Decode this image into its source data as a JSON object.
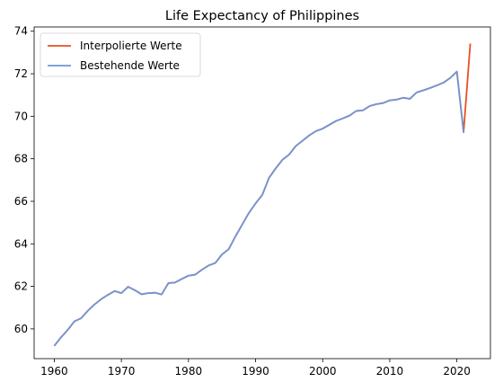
{
  "chart_data": {
    "type": "line",
    "title": "Life Expectancy of Philippines",
    "xlabel": "",
    "ylabel": "",
    "xlim": [
      1957,
      2025
    ],
    "ylim": [
      58.6,
      74.2
    ],
    "xticks": [
      1960,
      1970,
      1980,
      1990,
      2000,
      2010,
      2020,
      2030
    ],
    "yticks": [
      60,
      62,
      64,
      66,
      68,
      70,
      72,
      74
    ],
    "grid": false,
    "legend_position": "top-left",
    "series": [
      {
        "name": "Interpolierte Werte",
        "color": "#e8501e",
        "x": [
          1960,
          1961,
          1962,
          1963,
          1964,
          1965,
          1966,
          1967,
          1968,
          1969,
          1970,
          1971,
          1972,
          1973,
          1974,
          1975,
          1976,
          1977,
          1978,
          1979,
          1980,
          1981,
          1982,
          1983,
          1984,
          1985,
          1986,
          1987,
          1988,
          1989,
          1990,
          1991,
          1992,
          1993,
          1994,
          1995,
          1996,
          1997,
          1998,
          1999,
          2000,
          2001,
          2002,
          2003,
          2004,
          2005,
          2006,
          2007,
          2008,
          2009,
          2010,
          2011,
          2012,
          2013,
          2014,
          2015,
          2016,
          2017,
          2018,
          2019,
          2020,
          2021,
          2022
        ],
        "y": [
          59.2,
          59.6,
          59.95,
          60.35,
          60.5,
          60.85,
          61.15,
          61.4,
          61.6,
          61.78,
          61.68,
          61.98,
          61.82,
          61.63,
          61.68,
          61.7,
          61.62,
          62.15,
          62.18,
          62.35,
          62.5,
          62.55,
          62.78,
          62.98,
          63.1,
          63.5,
          63.75,
          64.35,
          64.9,
          65.45,
          65.9,
          66.3,
          67.1,
          67.55,
          67.95,
          68.2,
          68.6,
          68.85,
          69.1,
          69.3,
          69.42,
          69.6,
          69.78,
          69.9,
          70.03,
          70.25,
          70.28,
          70.48,
          70.57,
          70.62,
          70.75,
          70.78,
          70.87,
          70.82,
          71.12,
          71.22,
          71.33,
          71.45,
          71.58,
          71.8,
          72.1,
          69.25,
          73.42
        ]
      },
      {
        "name": "Bestehende Werte",
        "color": "#7096d6",
        "x": [
          1960,
          1961,
          1962,
          1963,
          1964,
          1965,
          1966,
          1967,
          1968,
          1969,
          1970,
          1971,
          1972,
          1973,
          1974,
          1975,
          1976,
          1977,
          1978,
          1979,
          1980,
          1981,
          1982,
          1983,
          1984,
          1985,
          1986,
          1987,
          1988,
          1989,
          1990,
          1991,
          1992,
          1993,
          1994,
          1995,
          1996,
          1997,
          1998,
          1999,
          2000,
          2001,
          2002,
          2003,
          2004,
          2005,
          2006,
          2007,
          2008,
          2009,
          2010,
          2011,
          2012,
          2013,
          2014,
          2015,
          2016,
          2017,
          2018,
          2019,
          2020,
          2021
        ],
        "y": [
          59.2,
          59.6,
          59.95,
          60.35,
          60.5,
          60.85,
          61.15,
          61.4,
          61.6,
          61.78,
          61.68,
          61.98,
          61.82,
          61.63,
          61.68,
          61.7,
          61.62,
          62.15,
          62.18,
          62.35,
          62.5,
          62.55,
          62.78,
          62.98,
          63.1,
          63.5,
          63.75,
          64.35,
          64.9,
          65.45,
          65.9,
          66.3,
          67.1,
          67.55,
          67.95,
          68.2,
          68.6,
          68.85,
          69.1,
          69.3,
          69.42,
          69.6,
          69.78,
          69.9,
          70.03,
          70.25,
          70.28,
          70.48,
          70.57,
          70.62,
          70.75,
          70.78,
          70.87,
          70.82,
          71.12,
          71.22,
          71.33,
          71.45,
          71.58,
          71.8,
          72.1,
          69.25
        ]
      }
    ]
  }
}
